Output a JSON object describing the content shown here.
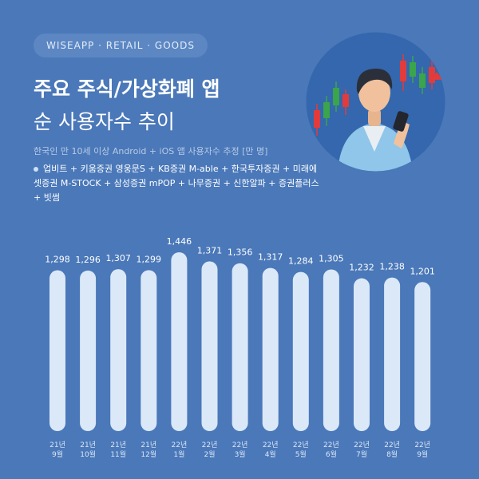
{
  "header": {
    "brand": "WISEAPP · RETAIL · GOODS",
    "title_line1": "주요 주식/가상화폐 앱",
    "title_line2": "순 사용자수 추이",
    "subtitle": "한국인 만 10세 이상 Android + iOS 앱 사용자수 추정 [만 명]",
    "legend_text": "업비트 + 키움증권 영웅문S + KB증권 M-able + 한국투자증권 + 미래에셋증권 M-STOCK + 삼성증권 mPOP + 나무증권 + 신한알파 + 증권플러스 + 빗썸"
  },
  "illustration": "person-with-smartphone-candlestick-chart",
  "colors": {
    "background": "#4a78b9",
    "bar": "#dbe8f8",
    "candle_red": "#e23b3b",
    "candle_green": "#3aa54a"
  },
  "chart_data": {
    "type": "bar",
    "categories": [
      [
        "21년",
        "9월"
      ],
      [
        "21년",
        "10월"
      ],
      [
        "21년",
        "11월"
      ],
      [
        "21년",
        "12월"
      ],
      [
        "22년",
        "1월"
      ],
      [
        "22년",
        "2월"
      ],
      [
        "22년",
        "3월"
      ],
      [
        "22년",
        "4월"
      ],
      [
        "22년",
        "5월"
      ],
      [
        "22년",
        "6월"
      ],
      [
        "22년",
        "7월"
      ],
      [
        "22년",
        "8월"
      ],
      [
        "22년",
        "9월"
      ]
    ],
    "values": [
      1298,
      1296,
      1307,
      1299,
      1446,
      1371,
      1356,
      1317,
      1284,
      1305,
      1232,
      1238,
      1201
    ],
    "value_labels": [
      "1,298",
      "1,296",
      "1,307",
      "1,299",
      "1,446",
      "1,371",
      "1,356",
      "1,317",
      "1,284",
      "1,305",
      "1,232",
      "1,238",
      "1,201"
    ],
    "title": "주요 주식/가상화폐 앱 순 사용자수 추이",
    "xlabel": "",
    "ylabel": "",
    "unit": "만 명",
    "grid": false,
    "ylim": [
      0,
      1446
    ]
  }
}
